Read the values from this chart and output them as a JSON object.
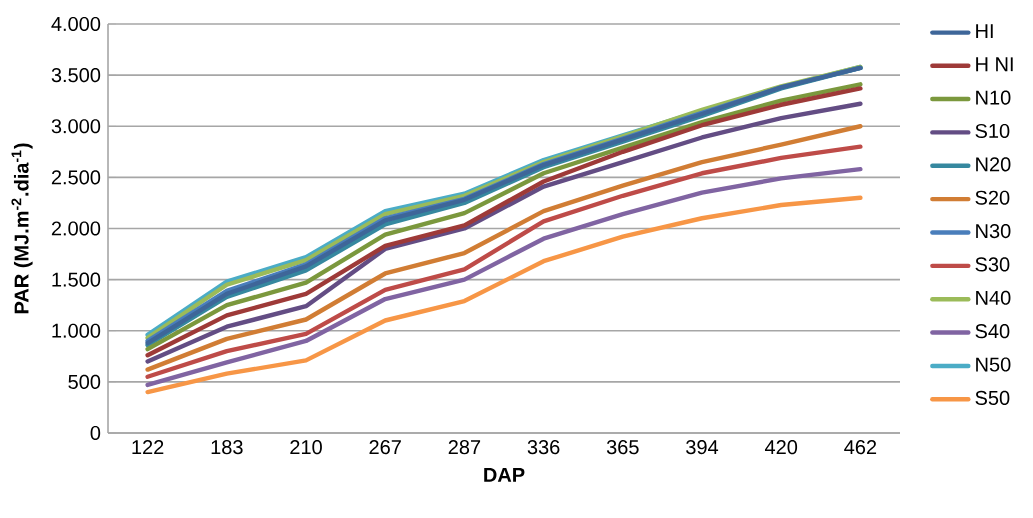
{
  "chart_data": {
    "type": "line",
    "xlabel": "DAP",
    "ylabel": "PAR (MJ.m$^{-2}$.dia$^{-1}$)",
    "categories": [
      "122",
      "183",
      "210",
      "267",
      "287",
      "336",
      "365",
      "394",
      "420",
      "462"
    ],
    "ylim": [
      0,
      4000
    ],
    "yticks": [
      0,
      {
        "value": 500,
        "label": "500"
      },
      {
        "value": 1000,
        "label": "1.000"
      },
      {
        "value": 1500,
        "label": "1.500"
      },
      {
        "value": 2000,
        "label": "2.000"
      },
      {
        "value": 2500,
        "label": "2.500"
      },
      {
        "value": 3000,
        "label": "3.000"
      },
      {
        "value": 3500,
        "label": "3.500"
      },
      {
        "value": 4000,
        "label": "4.000"
      }
    ],
    "grid": "y",
    "legend": "right",
    "marker": "none",
    "line_style": "solid",
    "series": [
      {
        "name": "HI",
        "color": "#3e6699",
        "values": [
          880,
          1360,
          1630,
          2080,
          2280,
          2620,
          2870,
          3120,
          3380,
          3570
        ]
      },
      {
        "name": "H NI",
        "color": "#9e3a38",
        "values": [
          760,
          1150,
          1360,
          1830,
          2030,
          2460,
          2750,
          3010,
          3210,
          3370
        ]
      },
      {
        "name": "N10",
        "color": "#7b983d",
        "values": [
          820,
          1250,
          1470,
          1940,
          2150,
          2540,
          2790,
          3040,
          3250,
          3410
        ]
      },
      {
        "name": "S10",
        "color": "#634d84",
        "values": [
          700,
          1040,
          1240,
          1800,
          2000,
          2410,
          2650,
          2890,
          3080,
          3220
        ]
      },
      {
        "name": "N20",
        "color": "#36889f",
        "values": [
          860,
          1330,
          1590,
          2040,
          2250,
          2600,
          2850,
          3100,
          3370,
          3570
        ]
      },
      {
        "name": "S20",
        "color": "#d17d34",
        "values": [
          620,
          920,
          1110,
          1560,
          1760,
          2170,
          2420,
          2650,
          2820,
          3000
        ]
      },
      {
        "name": "N30",
        "color": "#4a7ebb",
        "values": [
          900,
          1390,
          1650,
          2100,
          2290,
          2630,
          2880,
          3130,
          3380,
          3570
        ]
      },
      {
        "name": "S30",
        "color": "#be4b48",
        "values": [
          550,
          800,
          970,
          1400,
          1600,
          2070,
          2320,
          2540,
          2690,
          2800
        ]
      },
      {
        "name": "N40",
        "color": "#9bbb59",
        "values": [
          930,
          1450,
          1690,
          2140,
          2320,
          2650,
          2900,
          3160,
          3390,
          3580
        ]
      },
      {
        "name": "S40",
        "color": "#8064a2",
        "values": [
          470,
          690,
          900,
          1310,
          1500,
          1900,
          2140,
          2350,
          2490,
          2580
        ]
      },
      {
        "name": "N50",
        "color": "#4bacc6",
        "values": [
          960,
          1480,
          1720,
          2170,
          2340,
          2670,
          2910,
          3150,
          3380,
          3580
        ]
      },
      {
        "name": "S50",
        "color": "#f79646",
        "values": [
          400,
          580,
          710,
          1100,
          1290,
          1680,
          1920,
          2100,
          2230,
          2300
        ]
      }
    ]
  }
}
